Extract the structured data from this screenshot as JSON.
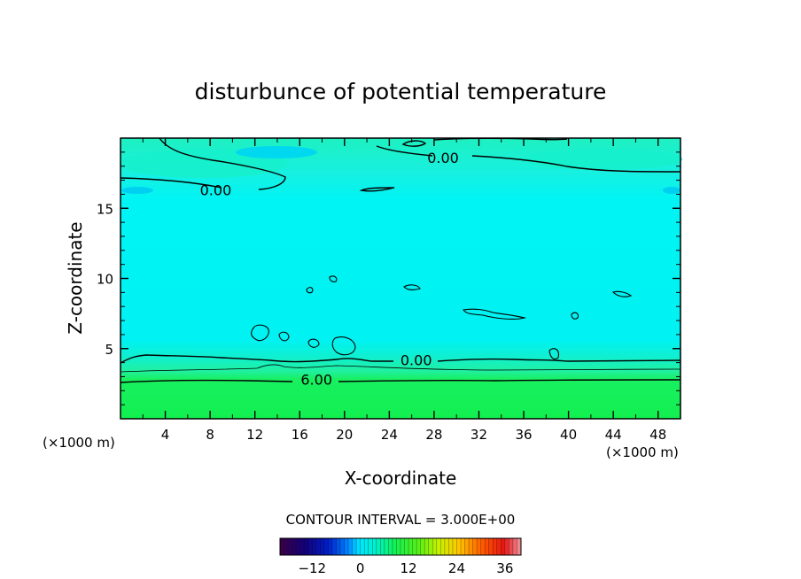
{
  "chart_data": {
    "type": "heatmap",
    "title": "disturbunce of potential temperature",
    "xlabel": "X-coordinate",
    "ylabel": "Z-coordinate",
    "x_unit": "(×1000 m)",
    "y_unit": "(×1000 m)",
    "xlim": [
      0,
      50
    ],
    "ylim": [
      0,
      20
    ],
    "x_ticks": [
      4,
      8,
      12,
      16,
      20,
      24,
      28,
      32,
      36,
      40,
      44,
      48
    ],
    "y_ticks": [
      5,
      10,
      15
    ],
    "contour_interval_text": "CONTOUR INTERVAL = 3.000E+00",
    "contour_labels": [
      {
        "text": "0.00",
        "x": 28.8,
        "z": 18.6
      },
      {
        "text": "0.00",
        "x": 8.5,
        "z": 16.3
      },
      {
        "text": "0.00",
        "x": 26.4,
        "z": 4.2
      },
      {
        "text": "6.00",
        "x": 17.5,
        "z": 2.8
      }
    ],
    "colorbar": {
      "range": [
        -20,
        40
      ],
      "ticks": [
        -12,
        0,
        12,
        24,
        36
      ]
    }
  }
}
